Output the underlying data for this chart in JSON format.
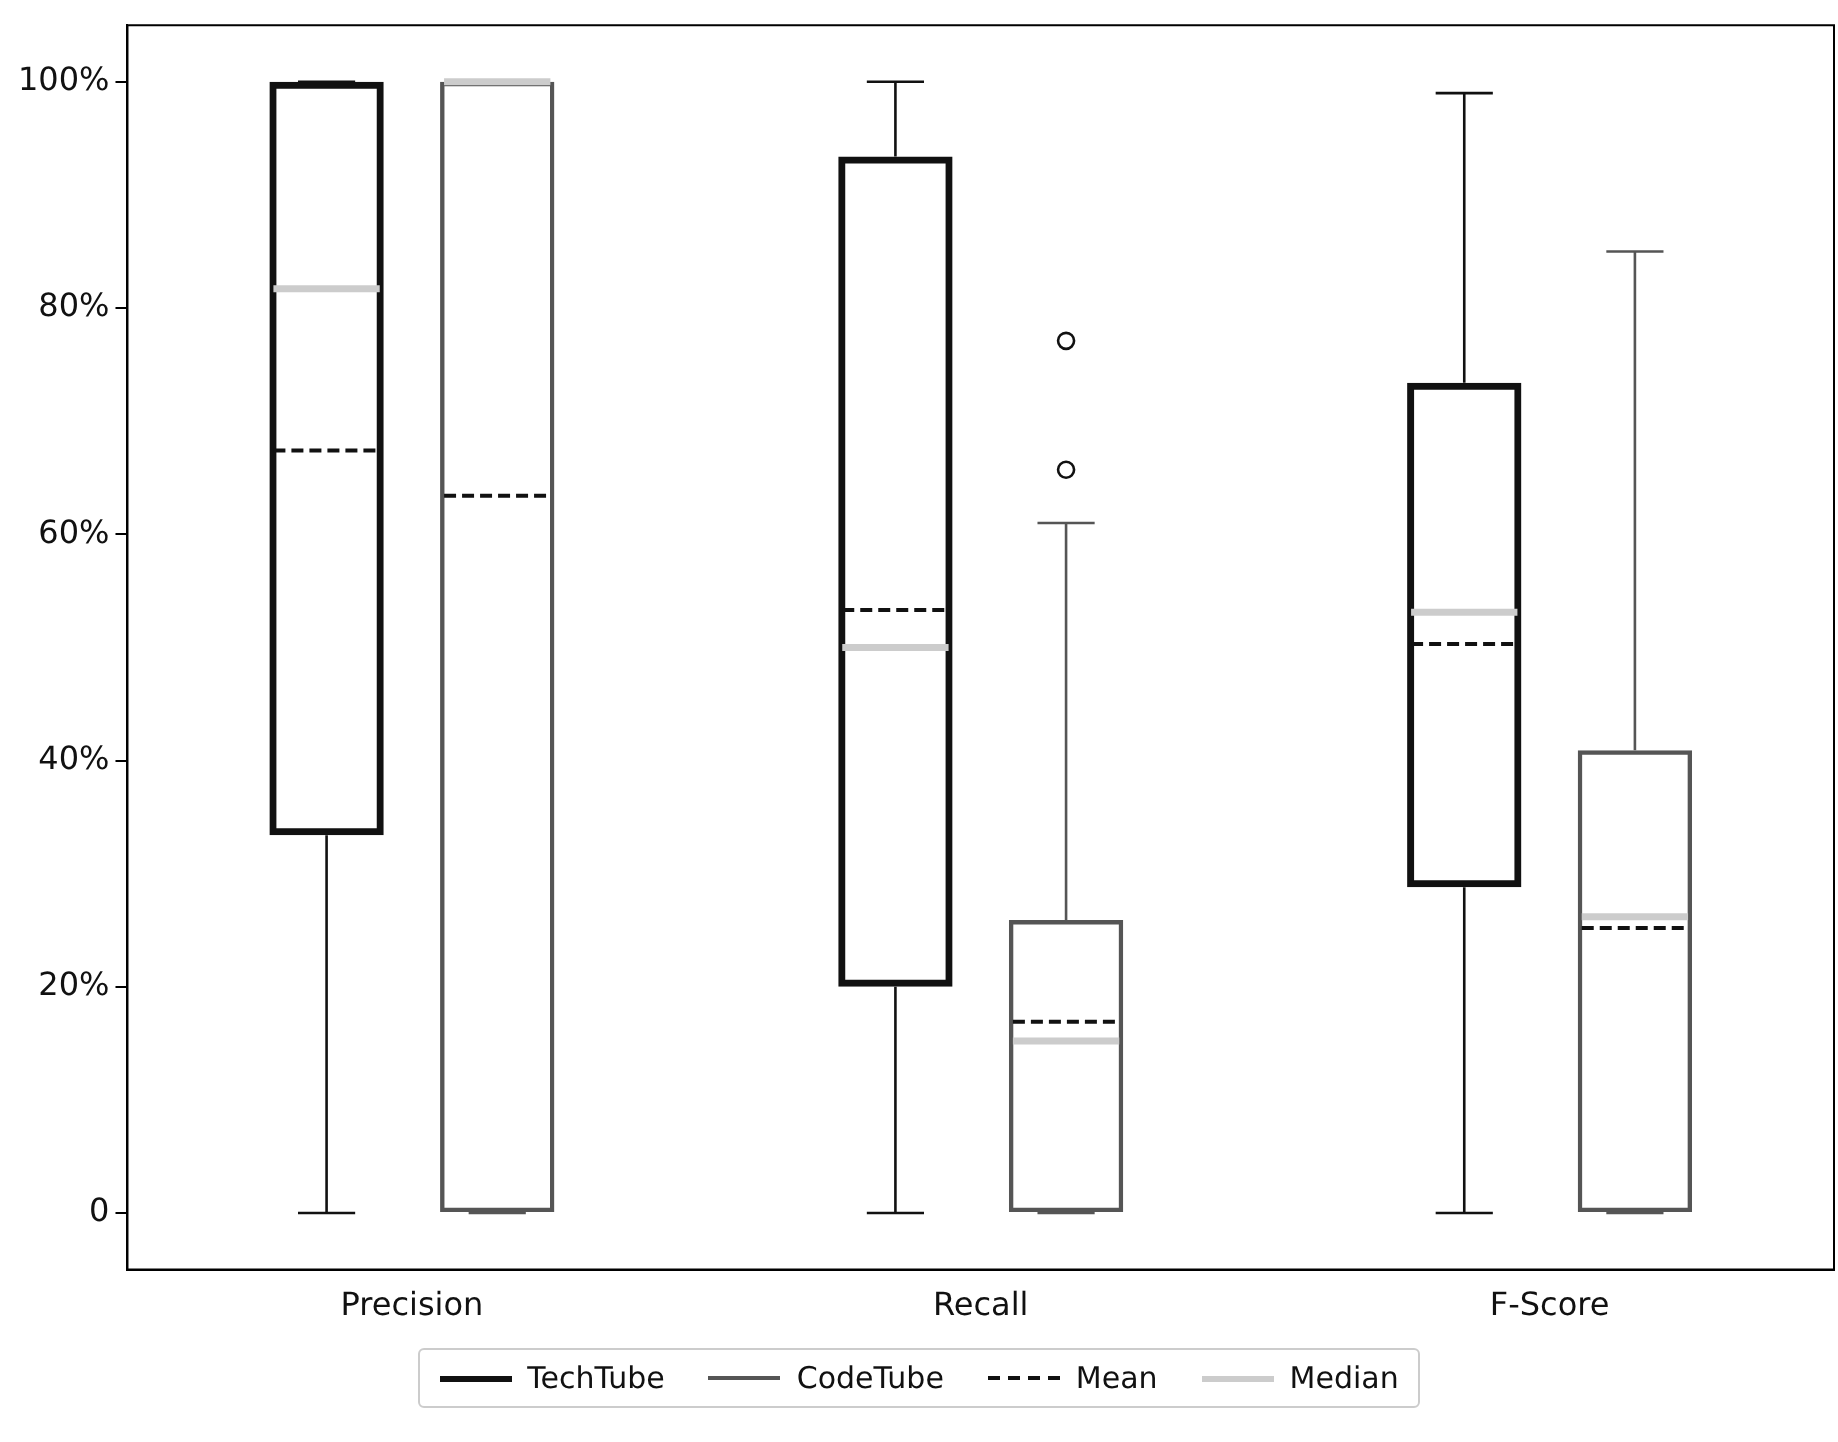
{
  "chart_data": {
    "type": "box",
    "categories": [
      "Precision",
      "Recall",
      "F-Score"
    ],
    "series": [
      {
        "name": "TechTube",
        "color": "#111111",
        "boxes": [
          {
            "low": 0,
            "q1": 33.4,
            "median": 81.7,
            "q3": 100,
            "high": 100,
            "mean": 67.4
          },
          {
            "low": 0,
            "q1": 20,
            "median": 50,
            "q3": 93.4,
            "high": 100,
            "mean": 53.3
          },
          {
            "low": 0,
            "q1": 28.8,
            "median": 53.1,
            "q3": 73.4,
            "high": 99,
            "mean": 50.3
          }
        ]
      },
      {
        "name": "CodeTube",
        "color": "#555555",
        "boxes": [
          {
            "low": 0,
            "q1": 0,
            "median": 100,
            "q3": 100,
            "high": 100,
            "mean": 63.4
          },
          {
            "low": 0,
            "q1": 0,
            "median": 15.2,
            "q3": 25.9,
            "high": 61,
            "mean": 16.9,
            "outliers": [
              65.7,
              77.1
            ]
          },
          {
            "low": 0,
            "q1": 0,
            "median": 26.2,
            "q3": 40.9,
            "high": 85,
            "mean": 25.2
          }
        ]
      }
    ],
    "ylim": [
      -5,
      105
    ],
    "yticks": [
      {
        "value": 0,
        "label": "0"
      },
      {
        "value": 20,
        "label": "20%"
      },
      {
        "value": 40,
        "label": "40%"
      },
      {
        "value": 60,
        "label": "60%"
      },
      {
        "value": 80,
        "label": "80%"
      },
      {
        "value": 100,
        "label": "100%"
      }
    ],
    "annotations": [
      "Mean",
      "Median"
    ],
    "grid": false,
    "legend": "bottom"
  }
}
